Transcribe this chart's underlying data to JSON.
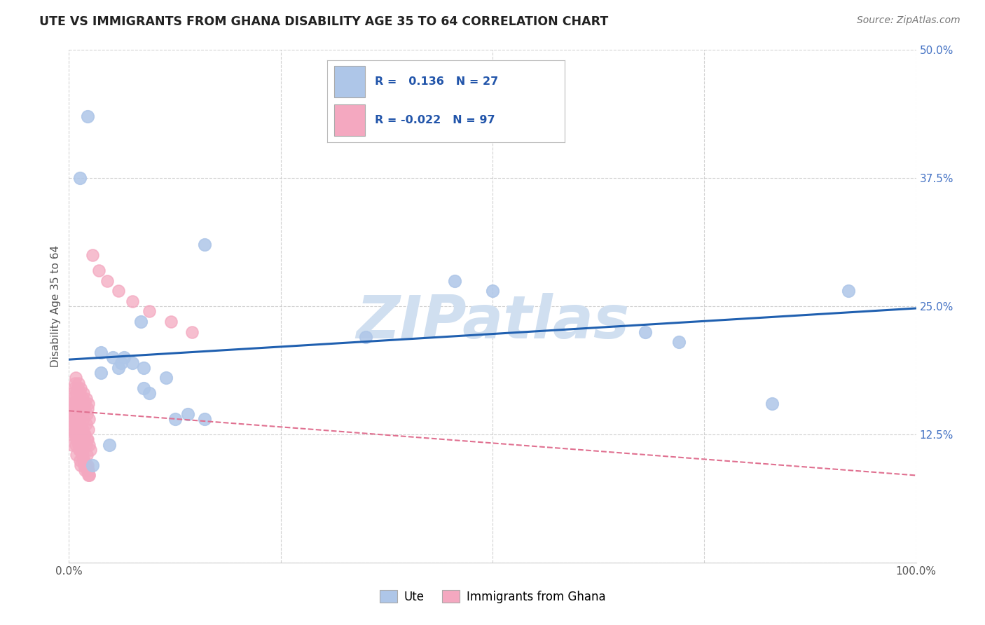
{
  "title": "UTE VS IMMIGRANTS FROM GHANA DISABILITY AGE 35 TO 64 CORRELATION CHART",
  "source": "Source: ZipAtlas.com",
  "ylabel": "Disability Age 35 to 64",
  "xlim": [
    0.0,
    1.0
  ],
  "ylim": [
    0.0,
    0.5
  ],
  "xticks": [
    0.0,
    0.25,
    0.5,
    0.75,
    1.0
  ],
  "xticklabels": [
    "0.0%",
    "",
    "",
    "",
    "100.0%"
  ],
  "yticks": [
    0.0,
    0.125,
    0.25,
    0.375,
    0.5
  ],
  "yticklabels": [
    "",
    "12.5%",
    "25.0%",
    "37.5%",
    "50.0%"
  ],
  "ute_color": "#aec6e8",
  "ghana_color": "#f4a8c0",
  "ute_line_color": "#2060b0",
  "ghana_line_color": "#e07090",
  "watermark_color": "#d0dff0",
  "background_color": "#ffffff",
  "grid_color": "#cccccc",
  "ute_points_x": [
    0.022,
    0.013,
    0.16,
    0.085,
    0.455,
    0.5,
    0.68,
    0.92,
    0.72,
    0.83,
    0.038,
    0.052,
    0.075,
    0.088,
    0.115,
    0.14,
    0.16,
    0.038,
    0.058,
    0.065,
    0.095,
    0.125,
    0.048,
    0.028,
    0.088,
    0.35,
    0.062
  ],
  "ute_points_y": [
    0.435,
    0.375,
    0.31,
    0.235,
    0.275,
    0.265,
    0.225,
    0.265,
    0.215,
    0.155,
    0.205,
    0.2,
    0.195,
    0.19,
    0.18,
    0.145,
    0.14,
    0.185,
    0.19,
    0.2,
    0.165,
    0.14,
    0.115,
    0.095,
    0.17,
    0.22,
    0.195
  ],
  "ghana_points_x": [
    0.002,
    0.003,
    0.004,
    0.005,
    0.006,
    0.007,
    0.008,
    0.009,
    0.01,
    0.011,
    0.012,
    0.013,
    0.014,
    0.015,
    0.016,
    0.017,
    0.018,
    0.019,
    0.02,
    0.021,
    0.022,
    0.023,
    0.024,
    0.025,
    0.003,
    0.005,
    0.007,
    0.009,
    0.011,
    0.013,
    0.015,
    0.017,
    0.019,
    0.021,
    0.023,
    0.004,
    0.006,
    0.008,
    0.01,
    0.012,
    0.014,
    0.016,
    0.018,
    0.02,
    0.022,
    0.024,
    0.003,
    0.006,
    0.009,
    0.012,
    0.015,
    0.018,
    0.021,
    0.024,
    0.004,
    0.007,
    0.01,
    0.013,
    0.016,
    0.019,
    0.022,
    0.005,
    0.008,
    0.011,
    0.014,
    0.017,
    0.02,
    0.023,
    0.006,
    0.009,
    0.012,
    0.015,
    0.018,
    0.021,
    0.024,
    0.007,
    0.01,
    0.013,
    0.016,
    0.019,
    0.022,
    0.008,
    0.011,
    0.014,
    0.017,
    0.02,
    0.023,
    0.028,
    0.035,
    0.045,
    0.058,
    0.075,
    0.095,
    0.12,
    0.145
  ],
  "ghana_points_y": [
    0.13,
    0.125,
    0.115,
    0.145,
    0.135,
    0.125,
    0.115,
    0.105,
    0.13,
    0.12,
    0.11,
    0.1,
    0.095,
    0.12,
    0.11,
    0.1,
    0.095,
    0.09,
    0.115,
    0.105,
    0.095,
    0.09,
    0.085,
    0.11,
    0.155,
    0.14,
    0.13,
    0.12,
    0.115,
    0.11,
    0.105,
    0.1,
    0.095,
    0.09,
    0.085,
    0.145,
    0.135,
    0.125,
    0.12,
    0.115,
    0.11,
    0.105,
    0.1,
    0.095,
    0.09,
    0.085,
    0.16,
    0.15,
    0.14,
    0.135,
    0.13,
    0.125,
    0.12,
    0.115,
    0.155,
    0.145,
    0.14,
    0.135,
    0.13,
    0.125,
    0.12,
    0.165,
    0.155,
    0.15,
    0.145,
    0.14,
    0.135,
    0.13,
    0.17,
    0.165,
    0.16,
    0.155,
    0.15,
    0.145,
    0.14,
    0.175,
    0.17,
    0.165,
    0.16,
    0.155,
    0.15,
    0.18,
    0.175,
    0.17,
    0.165,
    0.16,
    0.155,
    0.3,
    0.285,
    0.275,
    0.265,
    0.255,
    0.245,
    0.235,
    0.225
  ],
  "ute_line_x": [
    0.0,
    1.0
  ],
  "ute_line_y": [
    0.198,
    0.248
  ],
  "ghana_line_x": [
    0.0,
    1.0
  ],
  "ghana_line_y": [
    0.148,
    0.085
  ]
}
